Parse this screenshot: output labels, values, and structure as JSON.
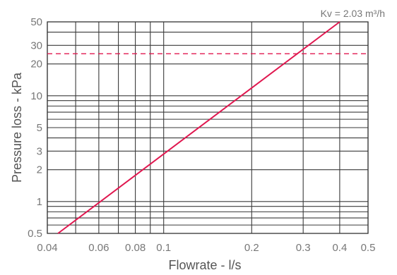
{
  "chart_data": {
    "type": "line",
    "xlabel": "Flowrate - l/s",
    "ylabel": "Pressure loss - kPa",
    "annotation": "Kv = 2.03 m³/h",
    "x_scale": "log",
    "y_scale": "log",
    "xlim": [
      0.04,
      0.5
    ],
    "ylim": [
      0.5,
      50
    ],
    "x_ticks": [
      {
        "value": 0.04,
        "label": "0.04"
      },
      {
        "value": 0.06,
        "label": "0.06"
      },
      {
        "value": 0.08,
        "label": "0.08"
      },
      {
        "value": 0.1,
        "label": "0.1"
      },
      {
        "value": 0.2,
        "label": "0.2"
      },
      {
        "value": 0.3,
        "label": "0.3"
      },
      {
        "value": 0.4,
        "label": "0.4"
      },
      {
        "value": 0.5,
        "label": "0.5"
      }
    ],
    "y_ticks": [
      {
        "value": 0.5,
        "label": "0.5"
      },
      {
        "value": 1,
        "label": "1"
      },
      {
        "value": 2,
        "label": "2"
      },
      {
        "value": 3,
        "label": "3"
      },
      {
        "value": 5,
        "label": "5"
      },
      {
        "value": 10,
        "label": "10"
      },
      {
        "value": 20,
        "label": "20"
      },
      {
        "value": 30,
        "label": "30"
      },
      {
        "value": 50,
        "label": "50"
      }
    ],
    "x_grid": [
      0.04,
      0.05,
      0.06,
      0.07,
      0.08,
      0.09,
      0.1,
      0.2,
      0.3,
      0.4,
      0.5
    ],
    "y_grid": [
      0.5,
      0.6,
      0.7,
      0.8,
      0.9,
      1,
      2,
      3,
      4,
      5,
      6,
      7,
      8,
      9,
      10,
      20,
      30,
      40,
      50
    ],
    "grid": true,
    "series": [
      {
        "color": "#e0174f",
        "x": [
          0.0435,
          0.4
        ],
        "y": [
          0.5,
          50
        ]
      }
    ],
    "reference_line": {
      "y": 25,
      "style": "dashed",
      "color": "#e0174f"
    }
  }
}
